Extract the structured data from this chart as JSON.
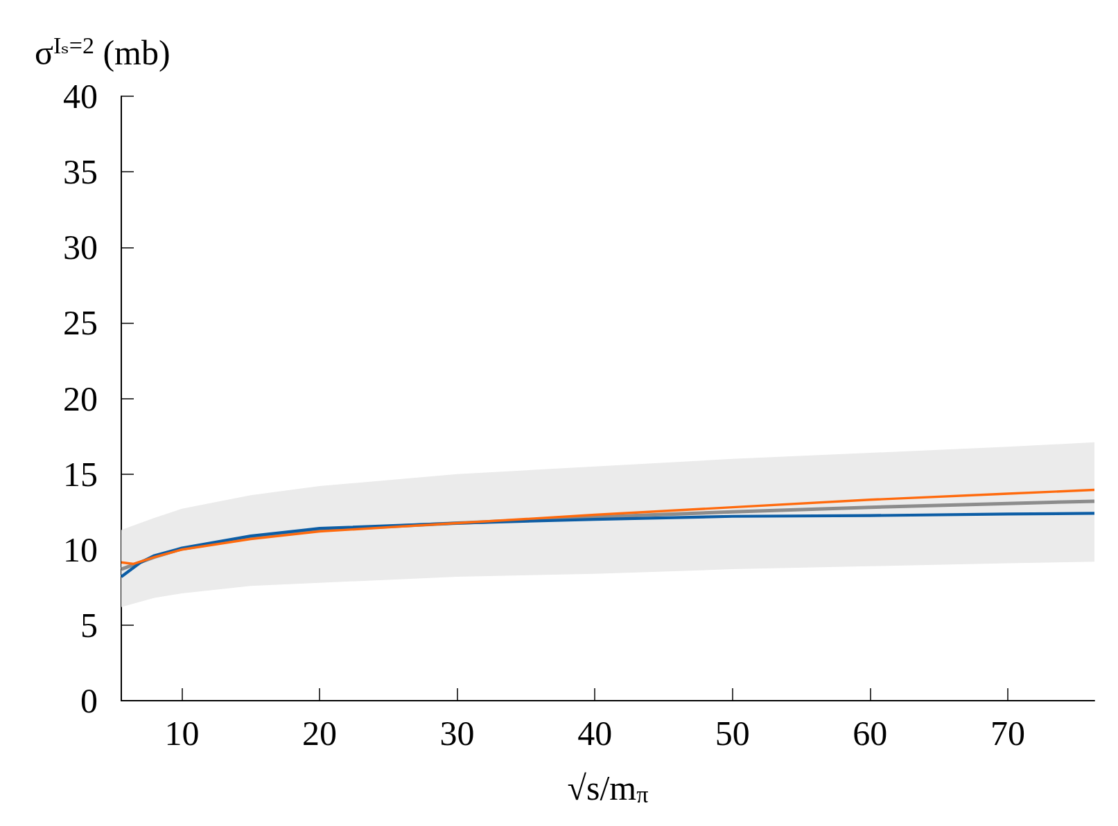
{
  "chart_data": {
    "type": "line",
    "xlabel": "√s/m$_{π}$",
    "ylabel": "σ$^{Iₛ=2}$ (mb)",
    "xlim": [
      5.6,
      76.3
    ],
    "xticks": [
      10,
      20,
      30,
      40,
      50,
      60,
      70
    ],
    "ylim": [
      0,
      40
    ],
    "yticks": [
      0,
      5,
      10,
      15,
      20,
      25,
      30,
      35,
      40
    ],
    "grid": false,
    "marker": "none",
    "line_style": "solid",
    "series": [
      {
        "color": "#8c8c8c",
        "x": [
          5.6,
          8,
          10,
          15,
          20,
          30,
          40,
          50,
          60,
          70,
          76.3
        ],
        "values": [
          8.7,
          9.5,
          10.05,
          10.8,
          11.3,
          11.75,
          12.15,
          12.5,
          12.8,
          13.05,
          13.2
        ],
        "lower": [
          6.2,
          6.8,
          7.1,
          7.6,
          7.8,
          8.2,
          8.4,
          8.7,
          8.9,
          9.1,
          9.2
        ],
        "upper": [
          11.3,
          12.1,
          12.7,
          13.6,
          14.2,
          15.0,
          15.5,
          16.0,
          16.4,
          16.8,
          17.1
        ]
      },
      {
        "color": "#0c5da5",
        "x": [
          5.6,
          7,
          8,
          10,
          15,
          20,
          30,
          40,
          50,
          60,
          70,
          76.3
        ],
        "values": [
          8.2,
          9.15,
          9.6,
          10.1,
          10.9,
          11.4,
          11.75,
          12.0,
          12.2,
          12.25,
          12.35,
          12.4
        ]
      },
      {
        "color": "#ff6a0d",
        "x": [
          5.6,
          6.5,
          8,
          10,
          15,
          20,
          30,
          40,
          50,
          60,
          70,
          76.3
        ],
        "values": [
          9.15,
          9.05,
          9.5,
          10.0,
          10.7,
          11.2,
          11.75,
          12.3,
          12.8,
          13.3,
          13.7,
          13.95
        ]
      }
    ]
  }
}
